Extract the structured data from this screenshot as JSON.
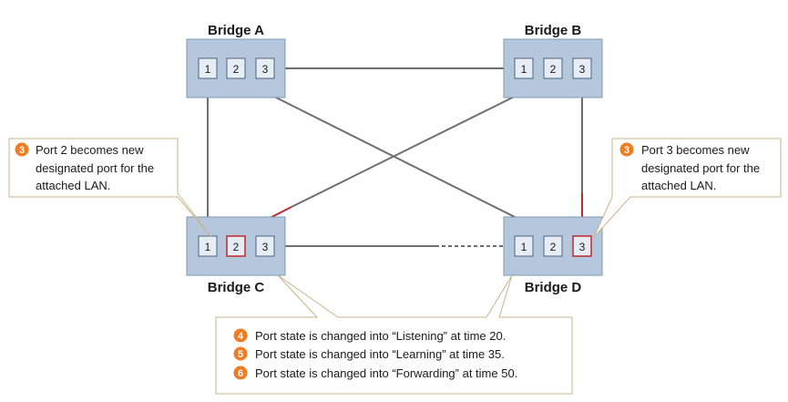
{
  "bridges": {
    "a": {
      "title": "Bridge A",
      "ports": [
        "1",
        "2",
        "3"
      ]
    },
    "b": {
      "title": "Bridge B",
      "ports": [
        "1",
        "2",
        "3"
      ]
    },
    "c": {
      "title": "Bridge C",
      "ports": [
        "1",
        "2",
        "3"
      ]
    },
    "d": {
      "title": "Bridge D",
      "ports": [
        "1",
        "2",
        "3"
      ]
    }
  },
  "callouts": {
    "left": {
      "badge": "3",
      "lines": [
        "Port 2 becomes new",
        "designated port for the",
        "attached LAN."
      ]
    },
    "right": {
      "badge": "3",
      "lines": [
        "Port 3 becomes new",
        "designated port for the",
        "attached LAN."
      ]
    },
    "bottom": {
      "steps": [
        {
          "badge": "4",
          "text": "Port state is changed into “Listening” at time 20."
        },
        {
          "badge": "5",
          "text": "Port state is changed into “Learning” at time 35."
        },
        {
          "badge": "6",
          "text": "Port state is changed into “Forwarding” at time 50."
        }
      ]
    }
  },
  "colors": {
    "bridge_fill": "#b4c7dc",
    "bridge_border": "#7f98b5",
    "port_fill": "#e6edf5",
    "port_border": "#4d6582",
    "link": "#6e6e6e",
    "designated": "#c0282d",
    "badge": "#f07c22",
    "callout_border": "#c9b48a"
  }
}
